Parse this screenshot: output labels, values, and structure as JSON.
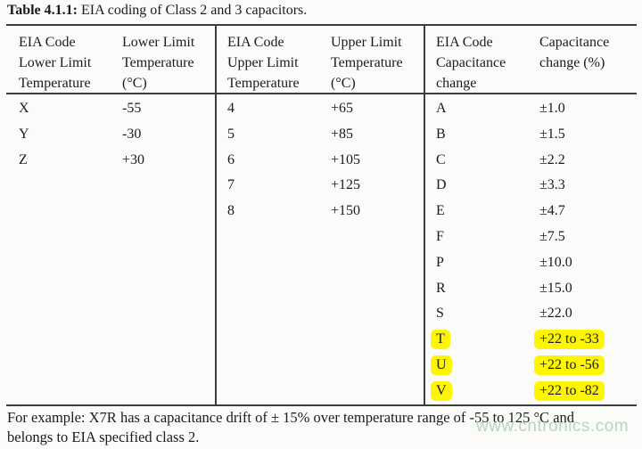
{
  "title": {
    "label_bold": "Table 4.1.1:",
    "label_rest": " EIA coding of Class 2 and 3 capacitors."
  },
  "table": {
    "sections": [
      {
        "header": {
          "col1": [
            "EIA Code",
            "Lower Limit",
            "Temperature"
          ],
          "col2": [
            "Lower Limit",
            "Temperature",
            "(°C)"
          ]
        },
        "rows": [
          {
            "code": "X",
            "value": "-55",
            "highlighted": false
          },
          {
            "code": "Y",
            "value": "-30",
            "highlighted": false
          },
          {
            "code": "Z",
            "value": "+30",
            "highlighted": false
          }
        ]
      },
      {
        "header": {
          "col1": [
            "EIA Code",
            "Upper Limit",
            "Temperature"
          ],
          "col2": [
            "Upper Limit",
            "Temperature",
            "(°C)"
          ]
        },
        "rows": [
          {
            "code": "4",
            "value": "+65",
            "highlighted": false
          },
          {
            "code": "5",
            "value": "+85",
            "highlighted": false
          },
          {
            "code": "6",
            "value": "+105",
            "highlighted": false
          },
          {
            "code": "7",
            "value": "+125",
            "highlighted": false
          },
          {
            "code": "8",
            "value": "+150",
            "highlighted": false
          }
        ]
      },
      {
        "header": {
          "col1": [
            "EIA Code",
            "Capacitance",
            "change"
          ],
          "col2": [
            "Capacitance",
            "change (%)",
            ""
          ]
        },
        "rows": [
          {
            "code": "A",
            "value": "±1.0",
            "highlighted": false
          },
          {
            "code": "B",
            "value": "±1.5",
            "highlighted": false
          },
          {
            "code": "C",
            "value": "±2.2",
            "highlighted": false
          },
          {
            "code": "D",
            "value": "±3.3",
            "highlighted": false
          },
          {
            "code": "E",
            "value": "±4.7",
            "highlighted": false
          },
          {
            "code": "F",
            "value": "±7.5",
            "highlighted": false
          },
          {
            "code": "P",
            "value": "±10.0",
            "highlighted": false
          },
          {
            "code": "R",
            "value": "±15.0",
            "highlighted": false
          },
          {
            "code": "S",
            "value": "±22.0",
            "highlighted": false
          },
          {
            "code": "T",
            "value": "+22 to -33",
            "highlighted": true
          },
          {
            "code": "U",
            "value": "+22 to -56",
            "highlighted": true
          },
          {
            "code": "V",
            "value": "+22 to -82",
            "highlighted": true
          }
        ]
      }
    ]
  },
  "footer": {
    "line1": "For example: X7R has a capacitance drift of ± 15% over temperature range of -55 to 125 °C and",
    "line2": "belongs to EIA specified class 2."
  },
  "watermark": {
    "text": "www.cntronics.com"
  },
  "colors": {
    "highlight": "#fdf501",
    "table_lines": "#3c3c3c",
    "watermark": "#b6d6c0",
    "background": "#fbfbf9"
  }
}
